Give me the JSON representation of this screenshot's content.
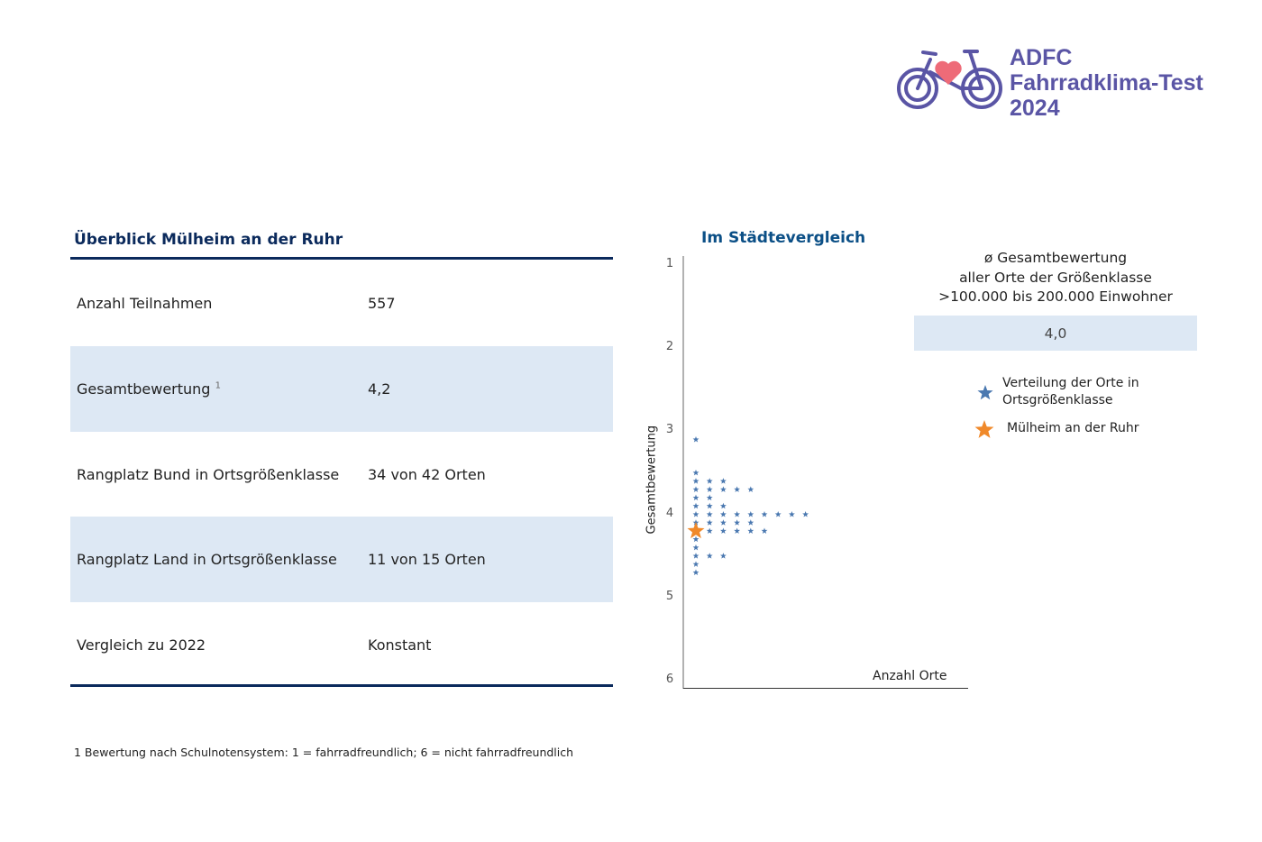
{
  "logo": {
    "lines": [
      "ADFC",
      "Fahrradklima-Test",
      "2024"
    ]
  },
  "table": {
    "title": "Überblick Mülheim an der Ruhr",
    "rows": [
      {
        "label": "Anzahl Teilnahmen",
        "value": "557"
      },
      {
        "label": "Gesamtbewertung",
        "sup": "1",
        "value": "4,2"
      },
      {
        "label": "Rangplatz Bund in Ortsgrößenklasse",
        "value": "34 von 42 Orten"
      },
      {
        "label": "Rangplatz Land in Ortsgrößenklasse",
        "value": "11 von 15 Orten"
      },
      {
        "label": "Vergleich zu 2022",
        "value": "Konstant"
      }
    ]
  },
  "footnote": "1 Bewertung nach Schulnotensystem: 1 = fahrradfreundlich; 6 = nicht fahrradfreundlich",
  "average": {
    "lines": [
      "ø Gesamtbewertung",
      "aller Orte der Größenklasse",
      ">100.000 bis 200.000 Einwohner"
    ],
    "value": "4,0"
  },
  "chart_data": {
    "type": "scatter",
    "title": "Im Städtevergleich",
    "xlabel": "Anzahl Orte",
    "ylabel": "Gesamtbewertung",
    "yticks": [
      "1",
      "2",
      "3",
      "4",
      "5",
      "6"
    ],
    "ylim": [
      1,
      6
    ],
    "distribution": [
      {
        "rating": 3.1,
        "count": 1
      },
      {
        "rating": 3.5,
        "count": 1
      },
      {
        "rating": 3.6,
        "count": 3
      },
      {
        "rating": 3.7,
        "count": 5
      },
      {
        "rating": 3.8,
        "count": 2
      },
      {
        "rating": 3.9,
        "count": 3
      },
      {
        "rating": 4.0,
        "count": 9
      },
      {
        "rating": 4.1,
        "count": 5
      },
      {
        "rating": 4.2,
        "count": 6
      },
      {
        "rating": 4.3,
        "count": 1
      },
      {
        "rating": 4.4,
        "count": 1
      },
      {
        "rating": 4.5,
        "count": 3
      },
      {
        "rating": 4.6,
        "count": 1
      },
      {
        "rating": 4.7,
        "count": 1
      }
    ],
    "highlight": {
      "name": "Mülheim an der Ruhr",
      "rating": 4.2
    },
    "legend": [
      {
        "label": "Verteilung der Orte in Ortsgrößenklasse",
        "color": "#4a78b0"
      },
      {
        "label": "Mülheim an der Ruhr",
        "color": "#f0892a"
      }
    ]
  }
}
